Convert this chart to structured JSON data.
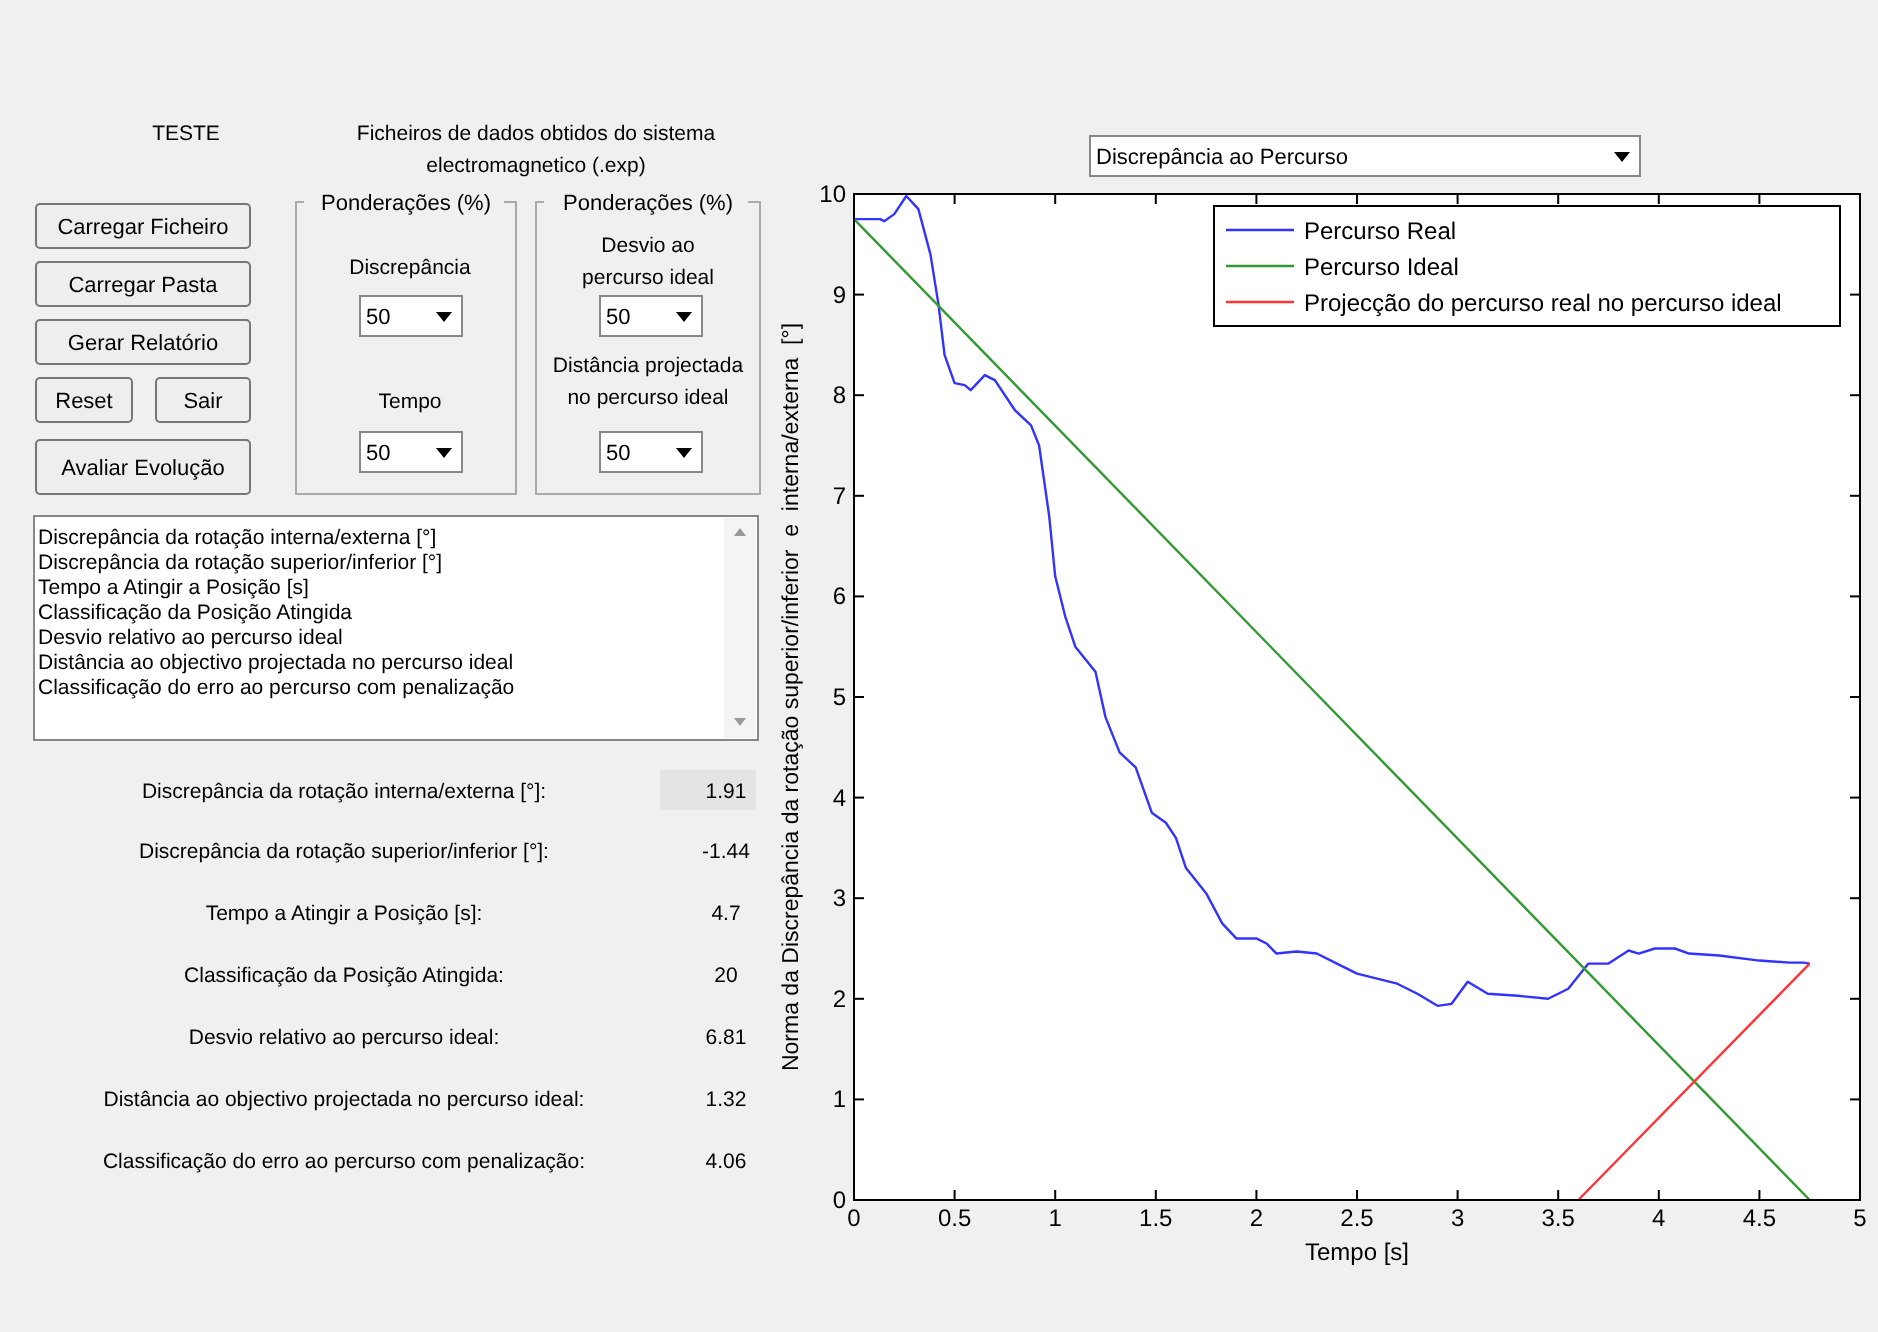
{
  "chart_data": [
    {
      "type": "other",
      "annotations": [
        "TESTE",
        "Ficheiros de dados obtidos do sistema",
        "electromagnetico (.exp)",
        "Carregar Ficheiro",
        "Carregar Pasta",
        "Gerar Relatório",
        "Reset",
        "Sair",
        "Avaliar Evolução",
        "Ponderações (%)",
        "Discrepância",
        "50",
        "Tempo",
        "50",
        "Ponderações (%)",
        "Desvio ao",
        "percurso ideal",
        "50",
        "Distância projectada",
        "no percurso ideal",
        "50",
        "Discrepância da rotação interna/externa [°]",
        "Discrepância da rotação superior/inferior [°]",
        "Tempo a Atingir a Posição [s]",
        "Classificação da Posição Atingida",
        "Desvio relativo ao percurso ideal",
        "Distância ao objectivo projectada no percurso ideal",
        "Classificação do erro ao percurso com penalização",
        "Discrepância da rotação interna/externa [°]:",
        "1.91",
        "Discrepância da rotação superior/inferior [°]:",
        "-1.44",
        "Tempo a Atingir a Posição [s]:",
        "4.7",
        "Classificação da Posição Atingida:",
        "20",
        "Desvio relativo ao percurso ideal:",
        "6.81",
        "Distância ao objectivo projectada no percurso ideal:",
        "1.32",
        "Classificação do erro ao percurso com penalização:",
        "4.06",
        "Discrepância ao Percurso"
      ]
    },
    {
      "type": "line",
      "xlabel": "Tempo [s]",
      "ylabel": "Norma da Discrepância da rotação superior/inferior  e  interna/externa  [°]",
      "xlim": [
        0,
        5
      ],
      "ylim": [
        0,
        10
      ],
      "xticks": [
        0,
        0.5,
        1,
        1.5,
        2,
        2.5,
        3,
        3.5,
        4,
        4.5,
        5
      ],
      "yticks": [
        0,
        1,
        2,
        3,
        4,
        5,
        6,
        7,
        8,
        9,
        10
      ],
      "legend": "top right",
      "grid": false,
      "series": [
        {
          "name": "Percurso Real",
          "color": "#3333ff",
          "x": [
            0,
            0.13,
            0.15,
            0.2,
            0.26,
            0.32,
            0.38,
            0.42,
            0.45,
            0.5,
            0.55,
            0.58,
            0.65,
            0.7,
            0.8,
            0.88,
            0.92,
            0.97,
            1.0,
            1.05,
            1.1,
            1.2,
            1.25,
            1.32,
            1.4,
            1.48,
            1.55,
            1.6,
            1.65,
            1.75,
            1.83,
            1.9,
            2.0,
            2.05,
            2.1,
            2.2,
            2.3,
            2.4,
            2.5,
            2.6,
            2.7,
            2.8,
            2.9,
            2.97,
            3.05,
            3.15,
            3.3,
            3.45,
            3.55,
            3.65,
            3.75,
            3.85,
            3.9,
            3.98,
            4.08,
            4.15,
            4.3,
            4.5,
            4.65,
            4.72,
            4.75
          ],
          "values": [
            9.75,
            9.75,
            9.73,
            9.8,
            9.98,
            9.85,
            9.4,
            8.9,
            8.4,
            8.12,
            8.1,
            8.05,
            8.2,
            8.15,
            7.85,
            7.7,
            7.5,
            6.8,
            6.2,
            5.8,
            5.5,
            5.25,
            4.8,
            4.45,
            4.3,
            3.85,
            3.75,
            3.6,
            3.3,
            3.05,
            2.75,
            2.6,
            2.6,
            2.55,
            2.45,
            2.47,
            2.45,
            2.35,
            2.25,
            2.2,
            2.15,
            2.05,
            1.93,
            1.95,
            2.17,
            2.05,
            2.03,
            2.0,
            2.1,
            2.35,
            2.35,
            2.48,
            2.45,
            2.5,
            2.5,
            2.45,
            2.43,
            2.38,
            2.36,
            2.36,
            2.35
          ]
        },
        {
          "name": "Percurso Ideal",
          "color": "#339933",
          "x": [
            0,
            4.75
          ],
          "values": [
            9.75,
            0
          ]
        },
        {
          "name": "Projecção do percurso real no percurso ideal",
          "color": "#ff3333",
          "x": [
            3.6,
            4.75
          ],
          "values": [
            0,
            2.35
          ]
        }
      ]
    }
  ]
}
